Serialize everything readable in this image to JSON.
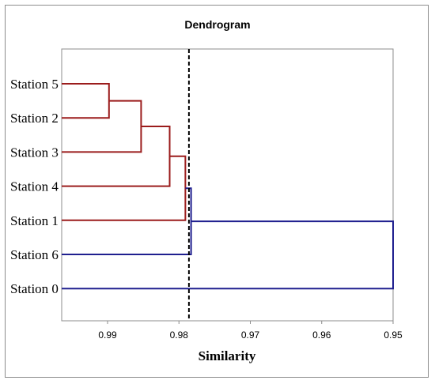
{
  "chart_data": {
    "type": "dendrogram",
    "title": "Dendrogram",
    "xlabel": "Similarity",
    "xlim": [
      0.995,
      0.95
    ],
    "x_ticks": [
      0.99,
      0.98,
      0.97,
      0.96,
      0.95
    ],
    "x_tick_labels": [
      "0.99",
      "0.98",
      "0.97",
      "0.96",
      "0.95"
    ],
    "leaves": [
      "Station 5",
      "Station 2",
      "Station 3",
      "Station 4",
      "Station 1",
      "Station 6",
      "Station 0"
    ],
    "merges": [
      {
        "left": "Station 5",
        "right": "Station 2",
        "similarity": 0.9898,
        "color": "#9b1c1c"
      },
      {
        "left": "merge-0",
        "right": "Station 3",
        "similarity": 0.9853,
        "color": "#9b1c1c"
      },
      {
        "left": "merge-1",
        "right": "Station 4",
        "similarity": 0.9813,
        "color": "#9b1c1c"
      },
      {
        "left": "merge-2",
        "right": "Station 1",
        "similarity": 0.9791,
        "color": "#9b1c1c"
      },
      {
        "left": "merge-3",
        "right": "Station 6",
        "similarity": 0.9783,
        "color": "#1f1f8f"
      },
      {
        "left": "merge-4",
        "right": "Station 0",
        "similarity": 0.95,
        "color": "#1f1f8f"
      }
    ],
    "cut_line": {
      "similarity": 0.9786,
      "style": "dashed"
    },
    "grid": false,
    "colors": {
      "cluster": "#9b1c1c",
      "other": "#1f1f8f",
      "cut": "#000000"
    }
  }
}
